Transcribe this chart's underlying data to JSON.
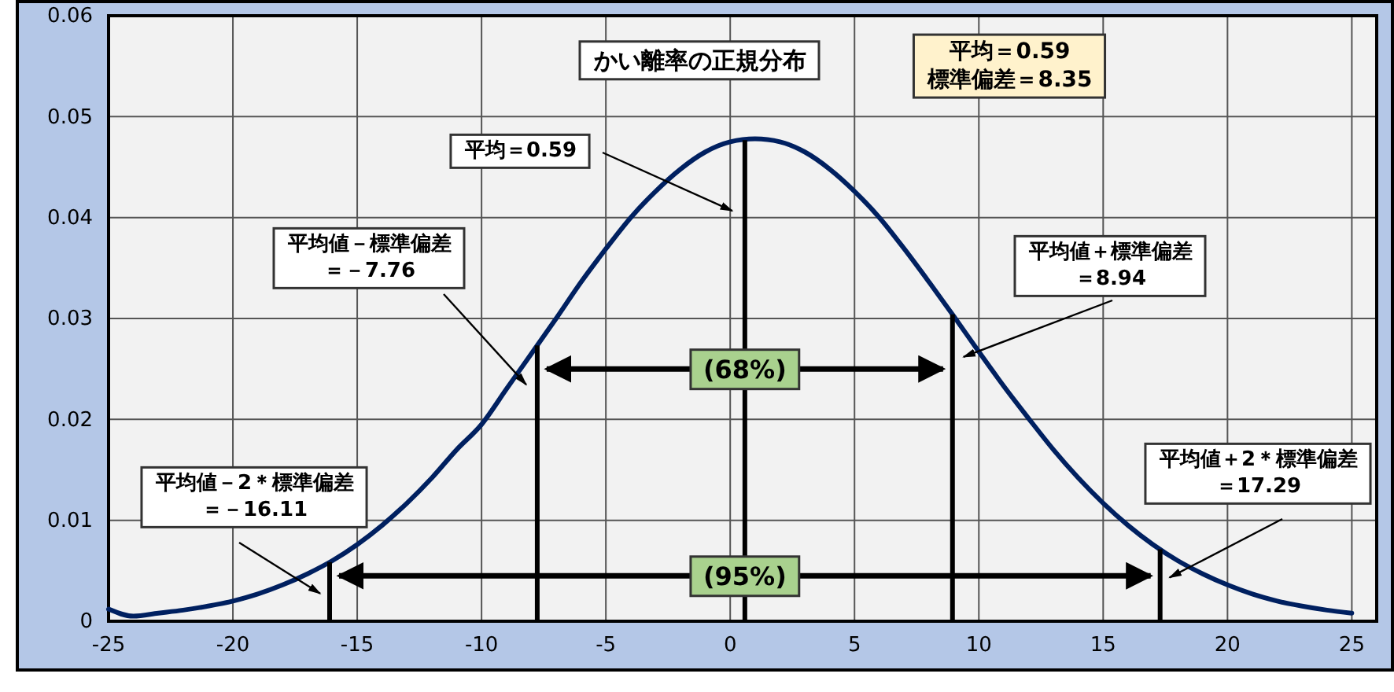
{
  "chart_data": {
    "type": "line",
    "title": "かい離率の正規分布",
    "subtitle": "平均＝0.59\n標準偏差＝8.35",
    "x": [
      -25,
      -24,
      -23,
      -22,
      -21,
      -20,
      -19,
      -18,
      -17,
      -16,
      -15,
      -14,
      -13,
      -12,
      -11,
      -10,
      -9,
      -8,
      -7,
      -6,
      -5,
      -4,
      -3,
      -2,
      -1,
      0,
      1,
      2,
      3,
      4,
      5,
      6,
      7,
      8,
      9,
      10,
      11,
      12,
      13,
      14,
      15,
      16,
      17,
      18,
      19,
      20,
      21,
      22,
      23,
      24,
      25
    ],
    "series": [
      {
        "color": "#002060",
        "values": [
          0.0012,
          0.0005,
          0.0008,
          0.0011,
          0.0015,
          0.002,
          0.0027,
          0.0036,
          0.0047,
          0.006,
          0.0076,
          0.0095,
          0.0117,
          0.0142,
          0.017,
          0.0195,
          0.023,
          0.0265,
          0.03,
          0.0336,
          0.0369,
          0.04,
          0.0426,
          0.0448,
          0.0465,
          0.0475,
          0.0478,
          0.0475,
          0.0465,
          0.0448,
          0.0426,
          0.04,
          0.0369,
          0.0336,
          0.0302,
          0.0267,
          0.0233,
          0.0201,
          0.017,
          0.0142,
          0.0117,
          0.0095,
          0.0076,
          0.006,
          0.0047,
          0.0036,
          0.0027,
          0.002,
          0.0015,
          0.0011,
          0.0008
        ]
      }
    ],
    "xlim": [
      -25,
      26
    ],
    "xticks": [
      -25,
      -20,
      -15,
      -10,
      -5,
      0,
      5,
      10,
      15,
      20,
      25
    ],
    "ylim": [
      0,
      0.06
    ],
    "yticks": [
      0,
      0.01,
      0.02,
      0.03,
      0.04,
      0.05,
      0.06
    ],
    "grid": true,
    "marker": "none",
    "line_style": "solid",
    "ref_lines": [
      {
        "axis": "x",
        "value": -16.11,
        "label": "平均値－2＊標準偏差＝－16.11"
      },
      {
        "axis": "x",
        "value": -7.76,
        "label": "平均値－標準偏差＝－7.76"
      },
      {
        "axis": "x",
        "value": 0.59,
        "label": "平均＝0.59"
      },
      {
        "axis": "x",
        "value": 8.94,
        "label": "平均値＋標準偏差＝8.94"
      },
      {
        "axis": "x",
        "value": 17.29,
        "label": "平均値＋2＊標準偏差＝17.29"
      }
    ],
    "annotations": [
      {
        "text": "(68%)",
        "x": 0.59,
        "y": 0.025
      },
      {
        "text": "(95%)",
        "x": 0.59,
        "y": 0.0045
      }
    ]
  }
}
